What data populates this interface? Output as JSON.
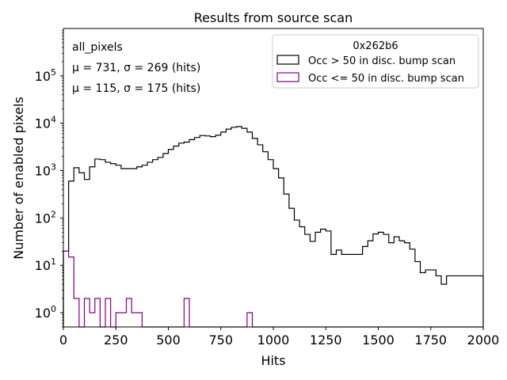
{
  "colors": {
    "series_high": "#000000",
    "series_low": "#800080",
    "legend_border": "#cccccc",
    "background": "#ffffff"
  },
  "chart_data": {
    "type": "histogram",
    "title": "Results from source scan",
    "xlabel": "Hits",
    "ylabel": "Number of enabled pixels",
    "xlim": [
      0,
      2000
    ],
    "ylim": [
      0.5,
      1000000
    ],
    "yscale": "log",
    "bin_width": 25,
    "grid": false,
    "x_ticks": [
      0,
      250,
      500,
      750,
      1000,
      1250,
      1500,
      1750,
      2000
    ],
    "x_tick_labels": [
      "0",
      "250",
      "500",
      "750",
      "1000",
      "1250",
      "1500",
      "1750",
      "2000"
    ],
    "y_ticks": [
      1,
      10,
      100,
      1000,
      10000,
      100000
    ],
    "y_tick_base": "10",
    "y_tick_exponents": [
      "0",
      "1",
      "2",
      "3",
      "4",
      "5"
    ],
    "legend": {
      "title": "0x262b6",
      "position": "top-right",
      "entries": [
        "Occ > 50 in disc. bump scan",
        "Occ <= 50 in disc. bump scan"
      ]
    },
    "annotations": {
      "label": "all_pixels",
      "stats_high": "μ = 731, σ = 269 (hits)",
      "stats_low": "μ = 115, σ = 175 (hits)"
    },
    "series": [
      {
        "name": "Occ > 50 in disc. bump scan",
        "color": "#000000",
        "values": [
          20,
          600,
          1150,
          900,
          650,
          1200,
          1750,
          1700,
          1500,
          1400,
          1300,
          1100,
          1100,
          1100,
          1200,
          1300,
          1500,
          1700,
          1900,
          2300,
          2800,
          3300,
          3800,
          4000,
          4500,
          5000,
          5500,
          5400,
          5200,
          5600,
          6500,
          7500,
          8200,
          8500,
          7800,
          6500,
          4800,
          3500,
          2500,
          1700,
          1100,
          700,
          320,
          160,
          90,
          65,
          45,
          32,
          50,
          58,
          53,
          17,
          21,
          17,
          17,
          17,
          17,
          25,
          33,
          46,
          50,
          45,
          30,
          40,
          33,
          30,
          22,
          12,
          7,
          8,
          8,
          6,
          4,
          6,
          6,
          6,
          6,
          6,
          6,
          6
        ]
      },
      {
        "name": "Occ <= 50 in disc. bump scan",
        "color": "#800080",
        "values": [
          20,
          15,
          2,
          0,
          2,
          1,
          2,
          0,
          2,
          0,
          1,
          1,
          2,
          1,
          1,
          0,
          0,
          0,
          0,
          0,
          0,
          0,
          0,
          2,
          0,
          0,
          0,
          0,
          0,
          0,
          0,
          0,
          0,
          0,
          0,
          1,
          0,
          0,
          0,
          0,
          0,
          0,
          0,
          0,
          0,
          0,
          0,
          0,
          0,
          0,
          0,
          0,
          0,
          0,
          0,
          0,
          0,
          0,
          0,
          0,
          0,
          0,
          0,
          0,
          0,
          0,
          0,
          0,
          0,
          0,
          0,
          0,
          0,
          0,
          0,
          0,
          0,
          0,
          0,
          0
        ]
      }
    ]
  }
}
